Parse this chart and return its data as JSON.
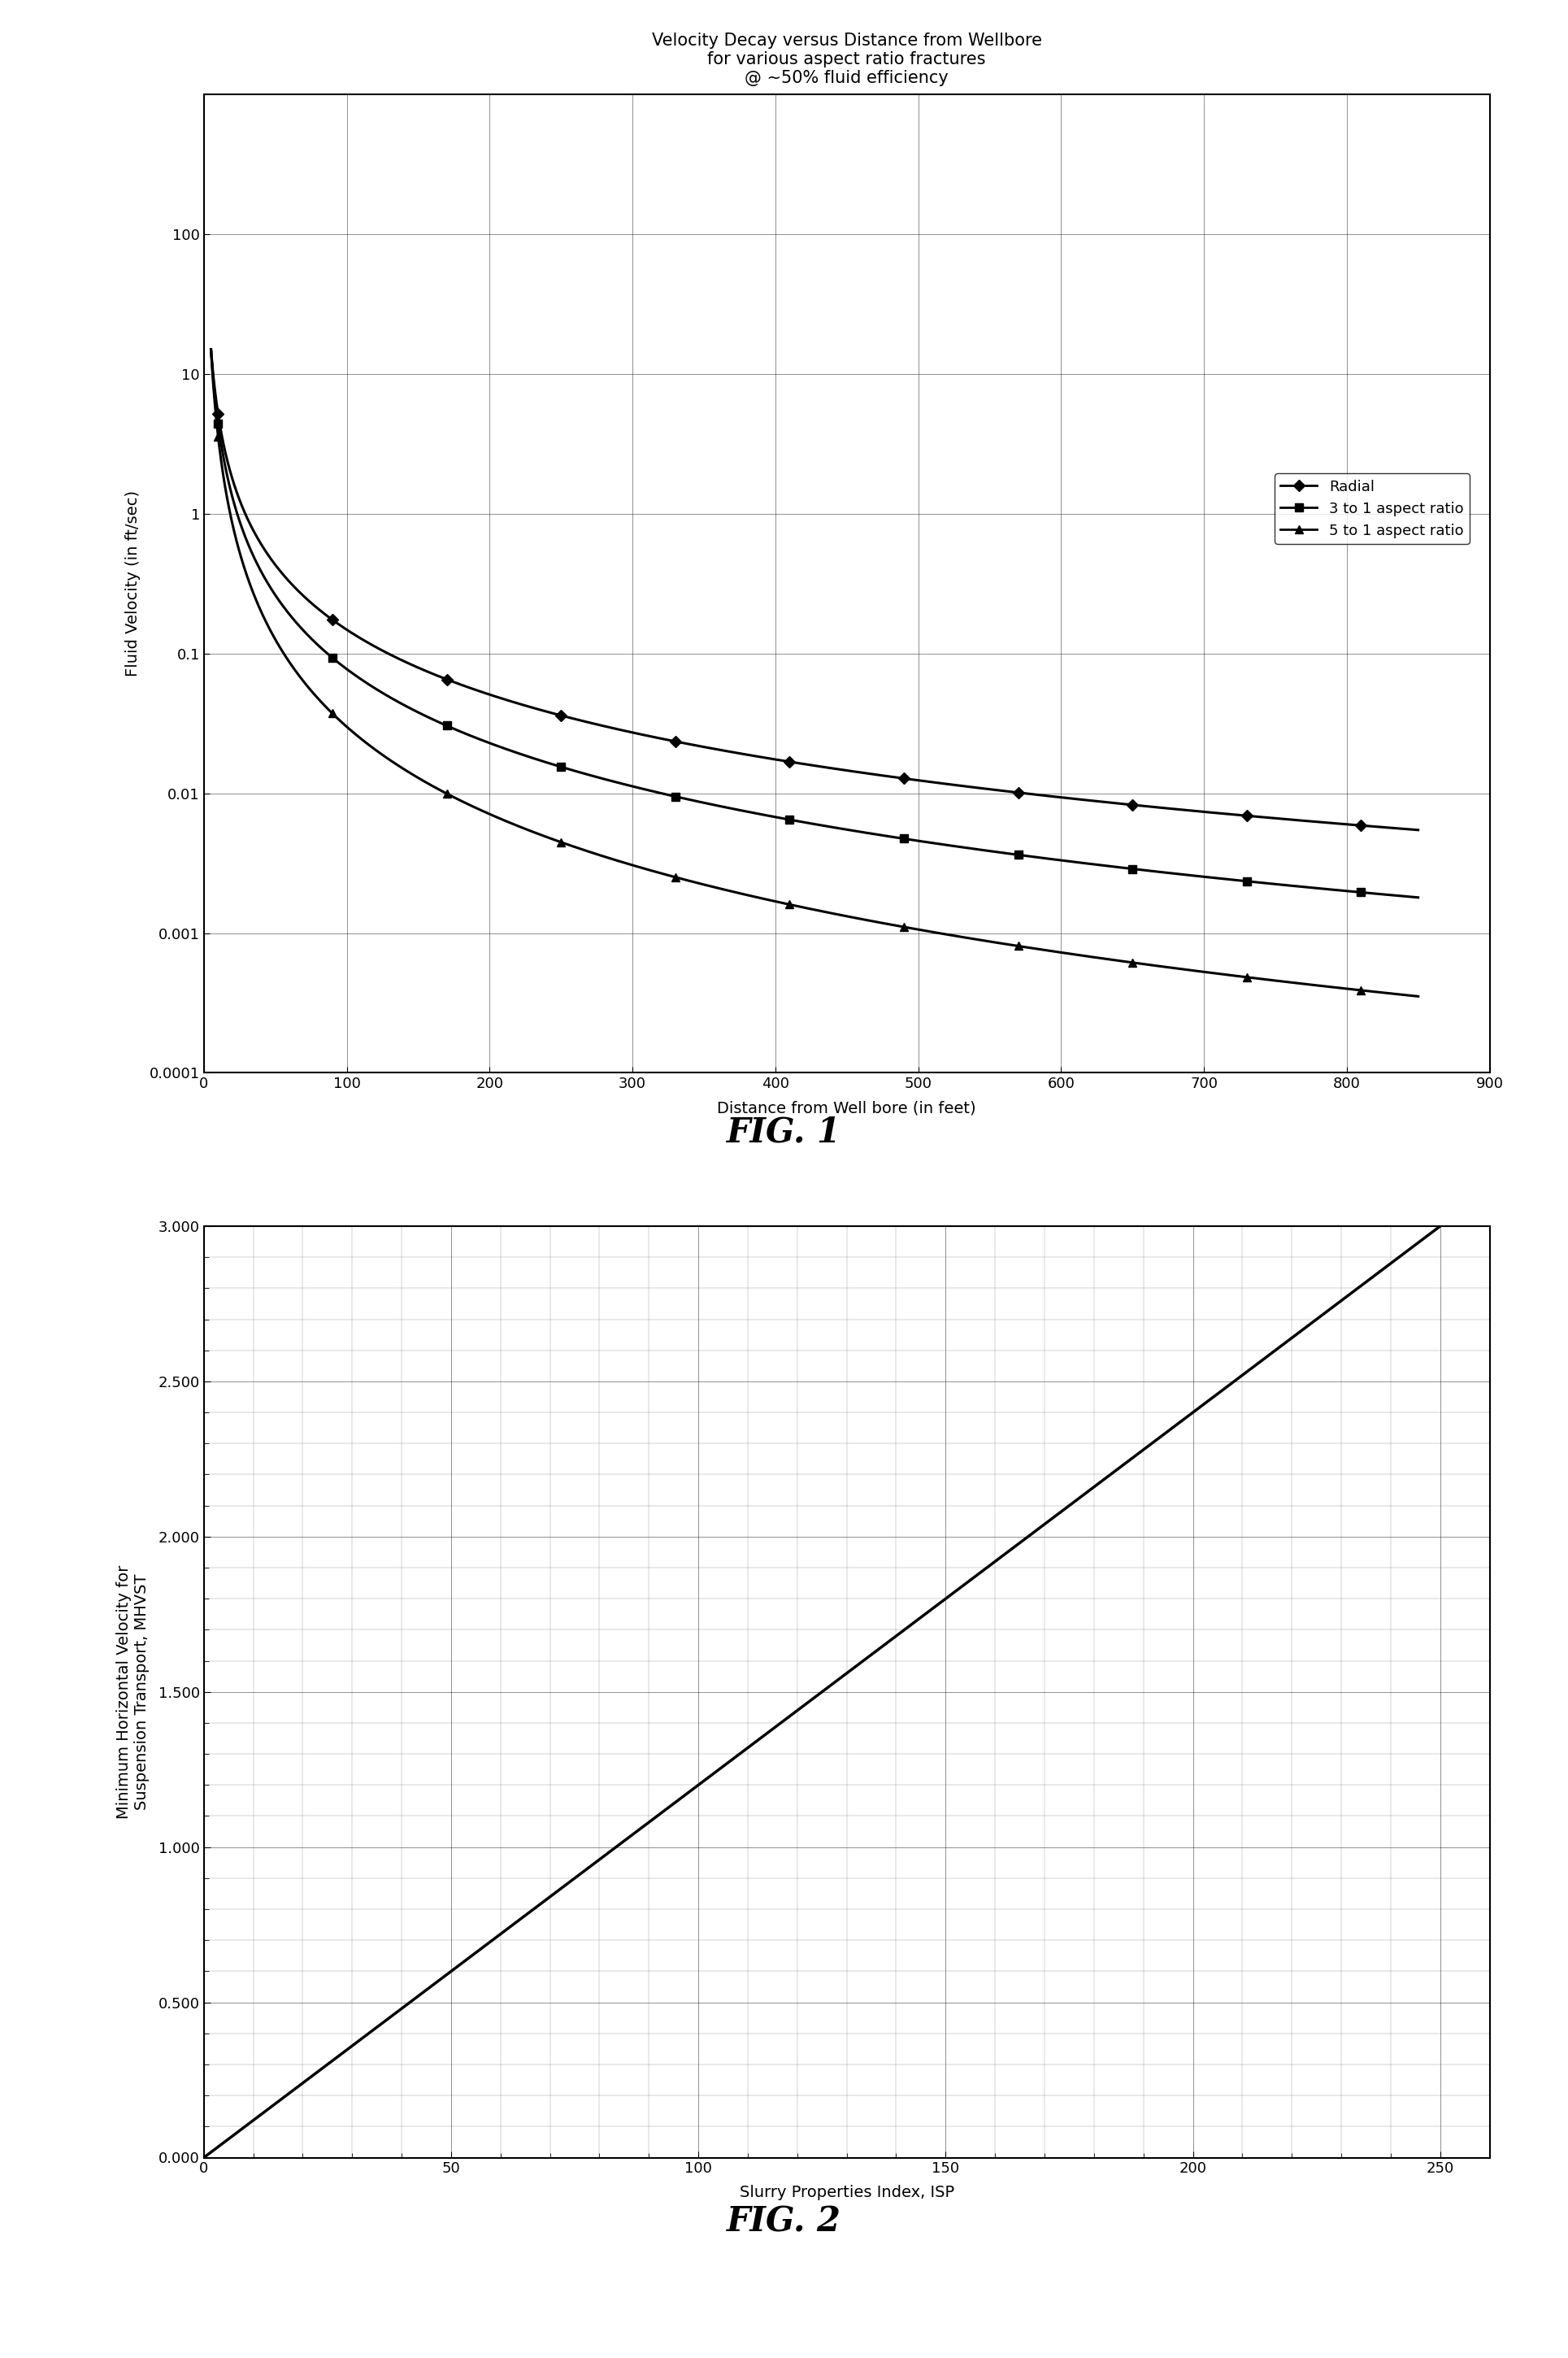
{
  "fig1": {
    "title": "Velocity Decay versus Distance from Wellbore\nfor various aspect ratio fractures\n@ ~50% fluid efficiency",
    "xlabel": "Distance from Well bore (in feet)",
    "ylabel": "Fluid Velocity (in ft/sec)",
    "xlim": [
      0,
      900
    ],
    "ylim_log_min": 0.0001,
    "ylim_log_max": 1000,
    "xticks": [
      0,
      100,
      200,
      300,
      400,
      500,
      600,
      700,
      800,
      900
    ],
    "ytick_labels": [
      "0.0001",
      "0.001",
      "0.01",
      "0.1",
      "1",
      "10",
      "100"
    ],
    "ytick_vals": [
      0.0001,
      0.001,
      0.01,
      0.1,
      1,
      10,
      100
    ],
    "legend": [
      "Radial",
      "3 to 1 aspect ratio",
      "5 to 1 aspect ratio"
    ],
    "radial_end": 0.006,
    "ratio3_end": 0.002,
    "ratio5_end": 0.0004,
    "start_val": 15.0,
    "start_x": 5.0,
    "end_x": 800.0
  },
  "fig2": {
    "xlabel": "Slurry Properties Index, ISP",
    "ylabel": "Minimum Horizontal Velocity for\nSuspension Transport, MHVST",
    "xlim": [
      0,
      260
    ],
    "ylim": [
      0.0,
      3.0
    ],
    "xticks": [
      0,
      50,
      100,
      150,
      200,
      250
    ],
    "yticks": [
      0.0,
      0.5,
      1.0,
      1.5,
      2.0,
      2.5,
      3.0
    ],
    "line_slope": 0.012
  },
  "fig1_label": "FIG. 1",
  "fig2_label": "FIG. 2",
  "background_color": "#ffffff",
  "title_fontsize": 15,
  "label_fontsize": 14,
  "tick_fontsize": 13,
  "legend_fontsize": 13,
  "fig_label_fontsize": 30
}
